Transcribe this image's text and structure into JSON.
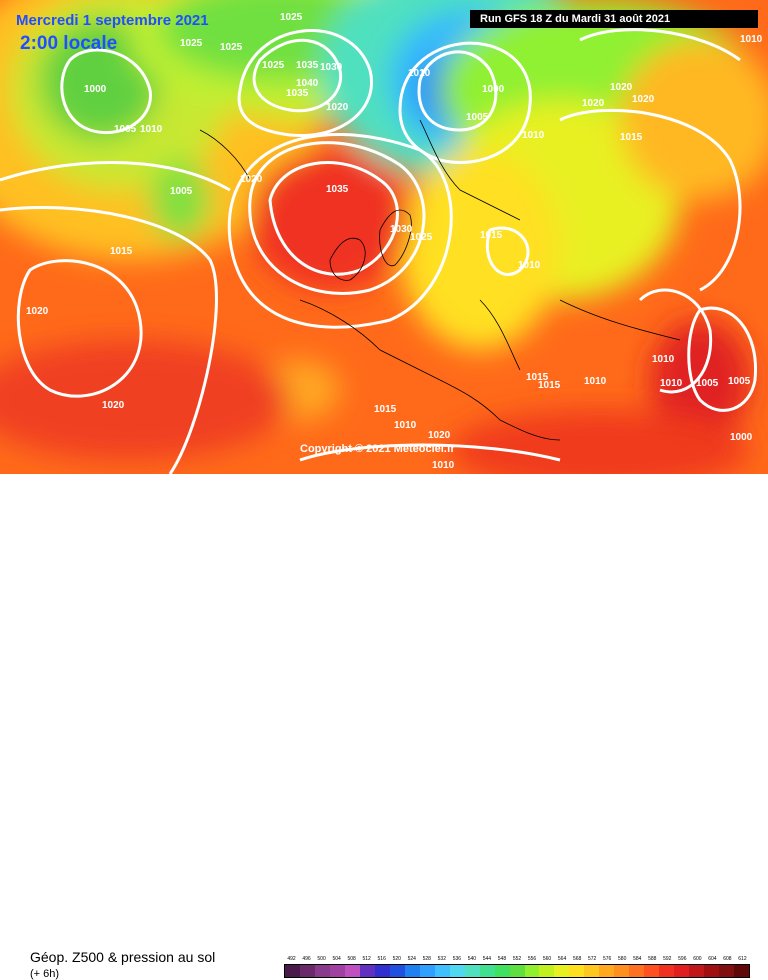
{
  "title": {
    "date": "Mercredi 1 septembre 2021",
    "time": "2:00 locale"
  },
  "run_info": "Run GFS 18 Z du Mardi 31 août 2021",
  "copyright": "Copyright © 2021 Meteociel.fr",
  "legend": {
    "title": "Géop. Z500 & pression au sol",
    "subtitle": "(+ 6h)",
    "scale_values": [
      "492",
      "496",
      "500",
      "504",
      "508",
      "512",
      "516",
      "520",
      "524",
      "528",
      "532",
      "536",
      "540",
      "544",
      "548",
      "552",
      "556",
      "560",
      "564",
      "568",
      "572",
      "576",
      "580",
      "584",
      "588",
      "592",
      "596",
      "600",
      "604",
      "608",
      "612"
    ],
    "scale_colors": [
      "#4a1a4a",
      "#6a2a6a",
      "#8a3a8a",
      "#a040a0",
      "#c050c0",
      "#6030c0",
      "#3030d0",
      "#2050e0",
      "#2080f0",
      "#30a0ff",
      "#40c0ff",
      "#50d8f0",
      "#50e0c0",
      "#40e090",
      "#40e060",
      "#60e040",
      "#90f030",
      "#c0f020",
      "#e8f020",
      "#ffe020",
      "#ffc820",
      "#ffa820",
      "#ff9020",
      "#ff7020",
      "#ff5020",
      "#f03020",
      "#e02020",
      "#c01818",
      "#a01010",
      "#801010",
      "#600808"
    ]
  },
  "pressure_labels": [
    "1025",
    "1025",
    "1025",
    "1025",
    "1035",
    "1030",
    "1040",
    "1035",
    "1020",
    "1000",
    "1005",
    "1010",
    "1005",
    "1020",
    "1035",
    "1030",
    "1025",
    "1015",
    "1015",
    "1010",
    "1010",
    "1000",
    "1005",
    "1010",
    "1020",
    "1020",
    "1020",
    "1015",
    "1010",
    "1020",
    "1020",
    "1015",
    "1015",
    "1010",
    "1015",
    "1010",
    "1020",
    "1010",
    "1010",
    "1010",
    "1005",
    "1005",
    "1000"
  ]
}
